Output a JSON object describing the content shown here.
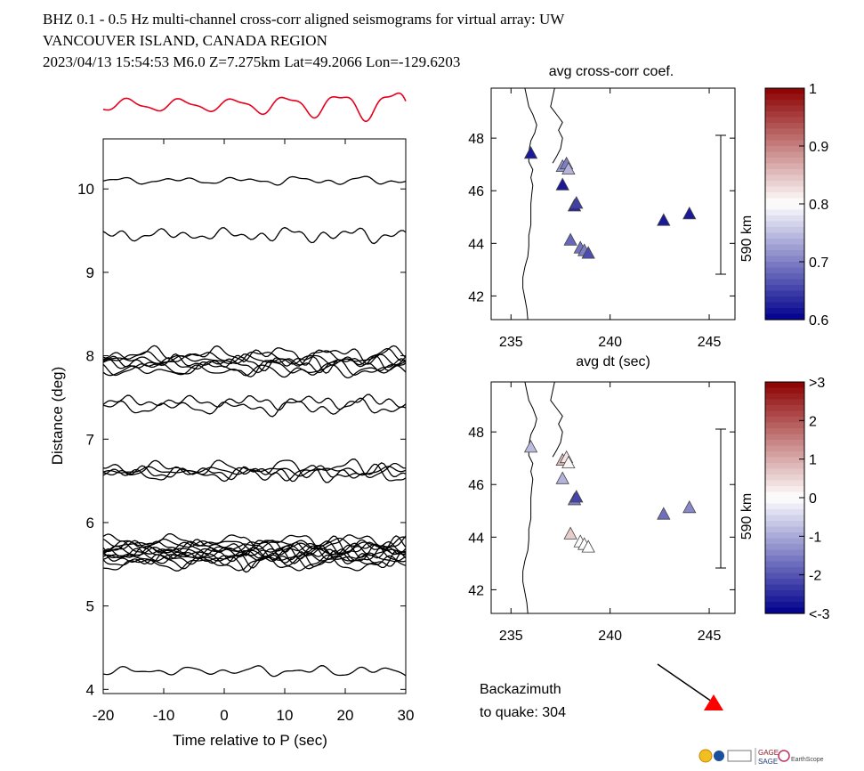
{
  "title": {
    "line1": "BHZ  0.1 - 0.5 Hz  multi-channel cross-corr aligned seismograms for virtual array: UW",
    "line2": "VANCOUVER ISLAND, CANADA REGION",
    "line3": "2023/04/13  15:54:53  M6.0  Z=7.275km Lat=49.2066 Lon=-129.6203"
  },
  "colors": {
    "stack_trace": "#e8001c",
    "traces": "#000000",
    "quake_marker": "#ff0000",
    "coast": "#000000"
  },
  "chart_data": [
    {
      "type": "line",
      "name": "seismogram-section",
      "xlabel": "Time relative to P (sec)",
      "ylabel": "Distance (deg)",
      "xlim": [
        -20,
        30
      ],
      "ylim": [
        3.95,
        10.6
      ],
      "xticks": [
        -20,
        -10,
        0,
        10,
        20,
        30
      ],
      "xtick_labels": [
        "-20",
        "-10",
        "0",
        "10",
        "20",
        "30"
      ],
      "yticks": [
        4,
        5,
        6,
        7,
        8,
        9,
        10
      ],
      "ytick_labels": [
        "4",
        "5",
        "6",
        "7",
        "8",
        "9",
        "10"
      ],
      "trace_distances_deg": [
        10.1,
        9.45,
        8.02,
        7.98,
        7.95,
        7.92,
        7.9,
        7.85,
        7.82,
        7.45,
        7.38,
        6.65,
        6.62,
        6.6,
        6.58,
        5.78,
        5.75,
        5.72,
        5.7,
        5.68,
        5.66,
        5.64,
        5.62,
        5.6,
        5.58,
        5.56,
        5.54,
        5.5,
        4.22
      ],
      "stack_trace": "red stacked waveform above section"
    },
    {
      "type": "scatter",
      "name": "avg-cross-corr-map",
      "title": "avg cross-corr coef.",
      "xlabel": "avg dt (sec)",
      "xlim": [
        234,
        246.3
      ],
      "ylim": [
        41.1,
        49.9
      ],
      "xticks": [
        235,
        240,
        245
      ],
      "xtick_labels": [
        "235",
        "240",
        "245"
      ],
      "yticks": [
        42,
        44,
        46,
        48
      ],
      "ytick_labels": [
        "42",
        "44",
        "46",
        "48"
      ],
      "scale_bar_label": "590 km",
      "colorbar": {
        "min": 0.6,
        "max": 1.0,
        "ticks": [
          0.6,
          0.7,
          0.8,
          0.9,
          1.0
        ],
        "tick_labels": [
          "0.6",
          "0.7",
          "0.8",
          "0.9",
          "1"
        ]
      },
      "stations": [
        {
          "x": 236.0,
          "y": 47.4,
          "v": 0.62
        },
        {
          "x": 237.6,
          "y": 46.9,
          "v": 0.72
        },
        {
          "x": 237.8,
          "y": 47.0,
          "v": 0.7
        },
        {
          "x": 237.9,
          "y": 46.8,
          "v": 0.74
        },
        {
          "x": 237.6,
          "y": 46.2,
          "v": 0.62
        },
        {
          "x": 238.2,
          "y": 45.4,
          "v": 0.63
        },
        {
          "x": 238.3,
          "y": 45.5,
          "v": 0.65
        },
        {
          "x": 238.0,
          "y": 44.1,
          "v": 0.68
        },
        {
          "x": 238.5,
          "y": 43.8,
          "v": 0.69
        },
        {
          "x": 238.7,
          "y": 43.7,
          "v": 0.7
        },
        {
          "x": 238.9,
          "y": 43.6,
          "v": 0.66
        },
        {
          "x": 242.7,
          "y": 44.85,
          "v": 0.62
        },
        {
          "x": 244.0,
          "y": 45.1,
          "v": 0.62
        }
      ]
    },
    {
      "type": "scatter",
      "name": "dt-residual-map",
      "xlim": [
        234,
        246.3
      ],
      "ylim": [
        41.1,
        49.9
      ],
      "xticks": [
        235,
        240,
        245
      ],
      "xtick_labels": [
        "235",
        "240",
        "245"
      ],
      "yticks": [
        42,
        44,
        46,
        48
      ],
      "ytick_labels": [
        "42",
        "44",
        "46",
        "48"
      ],
      "scale_bar_label": "590 km",
      "colorbar": {
        "min": -3,
        "max": 3,
        "ticks": [
          -3,
          -2,
          -1,
          0,
          1,
          2,
          3
        ],
        "tick_labels": [
          "<-3",
          "-2",
          "-1",
          "0",
          "1",
          "2",
          ">3"
        ]
      },
      "stations": [
        {
          "x": 236.0,
          "y": 47.4,
          "v": -0.8
        },
        {
          "x": 237.6,
          "y": 46.9,
          "v": 0.8
        },
        {
          "x": 237.8,
          "y": 47.0,
          "v": 0.3
        },
        {
          "x": 237.9,
          "y": 46.8,
          "v": 0.1
        },
        {
          "x": 237.6,
          "y": 46.2,
          "v": -0.9
        },
        {
          "x": 238.2,
          "y": 45.4,
          "v": -1.5
        },
        {
          "x": 238.3,
          "y": 45.5,
          "v": -2.2
        },
        {
          "x": 238.0,
          "y": 44.1,
          "v": 0.6
        },
        {
          "x": 238.5,
          "y": 43.8,
          "v": 0.0
        },
        {
          "x": 238.7,
          "y": 43.7,
          "v": 0.0
        },
        {
          "x": 238.9,
          "y": 43.6,
          "v": 0.0
        },
        {
          "x": 242.7,
          "y": 44.85,
          "v": -1.7
        },
        {
          "x": 244.0,
          "y": 45.1,
          "v": -1.4
        }
      ]
    }
  ],
  "backazimuth": {
    "line1": "Backazimuth",
    "line2": "to quake:  304",
    "value_deg": 304
  },
  "logos": {
    "gage": "GAGE",
    "sage": "SAGE",
    "earthscope": "EarthScope"
  }
}
